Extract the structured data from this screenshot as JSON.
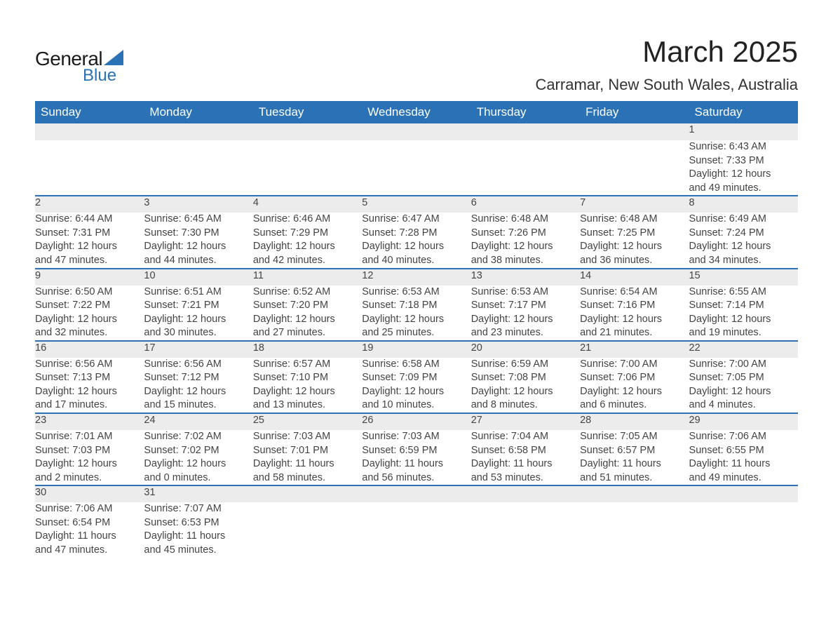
{
  "logo": {
    "word1": "General",
    "word2": "Blue",
    "accent_color": "#2a72b5"
  },
  "title": "March 2025",
  "location": "Carramar, New South Wales, Australia",
  "header_bg": "#2a72b5",
  "header_fg": "#ffffff",
  "daynum_bg": "#ececec",
  "row_border_color": "#2a72b5",
  "text_color": "#444444",
  "days_of_week": [
    "Sunday",
    "Monday",
    "Tuesday",
    "Wednesday",
    "Thursday",
    "Friday",
    "Saturday"
  ],
  "weeks": [
    [
      null,
      null,
      null,
      null,
      null,
      null,
      {
        "n": "1",
        "sunrise": "6:43 AM",
        "sunset": "7:33 PM",
        "dl1": "Daylight: 12 hours",
        "dl2": "and 49 minutes."
      }
    ],
    [
      {
        "n": "2",
        "sunrise": "6:44 AM",
        "sunset": "7:31 PM",
        "dl1": "Daylight: 12 hours",
        "dl2": "and 47 minutes."
      },
      {
        "n": "3",
        "sunrise": "6:45 AM",
        "sunset": "7:30 PM",
        "dl1": "Daylight: 12 hours",
        "dl2": "and 44 minutes."
      },
      {
        "n": "4",
        "sunrise": "6:46 AM",
        "sunset": "7:29 PM",
        "dl1": "Daylight: 12 hours",
        "dl2": "and 42 minutes."
      },
      {
        "n": "5",
        "sunrise": "6:47 AM",
        "sunset": "7:28 PM",
        "dl1": "Daylight: 12 hours",
        "dl2": "and 40 minutes."
      },
      {
        "n": "6",
        "sunrise": "6:48 AM",
        "sunset": "7:26 PM",
        "dl1": "Daylight: 12 hours",
        "dl2": "and 38 minutes."
      },
      {
        "n": "7",
        "sunrise": "6:48 AM",
        "sunset": "7:25 PM",
        "dl1": "Daylight: 12 hours",
        "dl2": "and 36 minutes."
      },
      {
        "n": "8",
        "sunrise": "6:49 AM",
        "sunset": "7:24 PM",
        "dl1": "Daylight: 12 hours",
        "dl2": "and 34 minutes."
      }
    ],
    [
      {
        "n": "9",
        "sunrise": "6:50 AM",
        "sunset": "7:22 PM",
        "dl1": "Daylight: 12 hours",
        "dl2": "and 32 minutes."
      },
      {
        "n": "10",
        "sunrise": "6:51 AM",
        "sunset": "7:21 PM",
        "dl1": "Daylight: 12 hours",
        "dl2": "and 30 minutes."
      },
      {
        "n": "11",
        "sunrise": "6:52 AM",
        "sunset": "7:20 PM",
        "dl1": "Daylight: 12 hours",
        "dl2": "and 27 minutes."
      },
      {
        "n": "12",
        "sunrise": "6:53 AM",
        "sunset": "7:18 PM",
        "dl1": "Daylight: 12 hours",
        "dl2": "and 25 minutes."
      },
      {
        "n": "13",
        "sunrise": "6:53 AM",
        "sunset": "7:17 PM",
        "dl1": "Daylight: 12 hours",
        "dl2": "and 23 minutes."
      },
      {
        "n": "14",
        "sunrise": "6:54 AM",
        "sunset": "7:16 PM",
        "dl1": "Daylight: 12 hours",
        "dl2": "and 21 minutes."
      },
      {
        "n": "15",
        "sunrise": "6:55 AM",
        "sunset": "7:14 PM",
        "dl1": "Daylight: 12 hours",
        "dl2": "and 19 minutes."
      }
    ],
    [
      {
        "n": "16",
        "sunrise": "6:56 AM",
        "sunset": "7:13 PM",
        "dl1": "Daylight: 12 hours",
        "dl2": "and 17 minutes."
      },
      {
        "n": "17",
        "sunrise": "6:56 AM",
        "sunset": "7:12 PM",
        "dl1": "Daylight: 12 hours",
        "dl2": "and 15 minutes."
      },
      {
        "n": "18",
        "sunrise": "6:57 AM",
        "sunset": "7:10 PM",
        "dl1": "Daylight: 12 hours",
        "dl2": "and 13 minutes."
      },
      {
        "n": "19",
        "sunrise": "6:58 AM",
        "sunset": "7:09 PM",
        "dl1": "Daylight: 12 hours",
        "dl2": "and 10 minutes."
      },
      {
        "n": "20",
        "sunrise": "6:59 AM",
        "sunset": "7:08 PM",
        "dl1": "Daylight: 12 hours",
        "dl2": "and 8 minutes."
      },
      {
        "n": "21",
        "sunrise": "7:00 AM",
        "sunset": "7:06 PM",
        "dl1": "Daylight: 12 hours",
        "dl2": "and 6 minutes."
      },
      {
        "n": "22",
        "sunrise": "7:00 AM",
        "sunset": "7:05 PM",
        "dl1": "Daylight: 12 hours",
        "dl2": "and 4 minutes."
      }
    ],
    [
      {
        "n": "23",
        "sunrise": "7:01 AM",
        "sunset": "7:03 PM",
        "dl1": "Daylight: 12 hours",
        "dl2": "and 2 minutes."
      },
      {
        "n": "24",
        "sunrise": "7:02 AM",
        "sunset": "7:02 PM",
        "dl1": "Daylight: 12 hours",
        "dl2": "and 0 minutes."
      },
      {
        "n": "25",
        "sunrise": "7:03 AM",
        "sunset": "7:01 PM",
        "dl1": "Daylight: 11 hours",
        "dl2": "and 58 minutes."
      },
      {
        "n": "26",
        "sunrise": "7:03 AM",
        "sunset": "6:59 PM",
        "dl1": "Daylight: 11 hours",
        "dl2": "and 56 minutes."
      },
      {
        "n": "27",
        "sunrise": "7:04 AM",
        "sunset": "6:58 PM",
        "dl1": "Daylight: 11 hours",
        "dl2": "and 53 minutes."
      },
      {
        "n": "28",
        "sunrise": "7:05 AM",
        "sunset": "6:57 PM",
        "dl1": "Daylight: 11 hours",
        "dl2": "and 51 minutes."
      },
      {
        "n": "29",
        "sunrise": "7:06 AM",
        "sunset": "6:55 PM",
        "dl1": "Daylight: 11 hours",
        "dl2": "and 49 minutes."
      }
    ],
    [
      {
        "n": "30",
        "sunrise": "7:06 AM",
        "sunset": "6:54 PM",
        "dl1": "Daylight: 11 hours",
        "dl2": "and 47 minutes."
      },
      {
        "n": "31",
        "sunrise": "7:07 AM",
        "sunset": "6:53 PM",
        "dl1": "Daylight: 11 hours",
        "dl2": "and 45 minutes."
      },
      null,
      null,
      null,
      null,
      null
    ]
  ],
  "labels": {
    "sunrise": "Sunrise: ",
    "sunset": "Sunset: "
  }
}
